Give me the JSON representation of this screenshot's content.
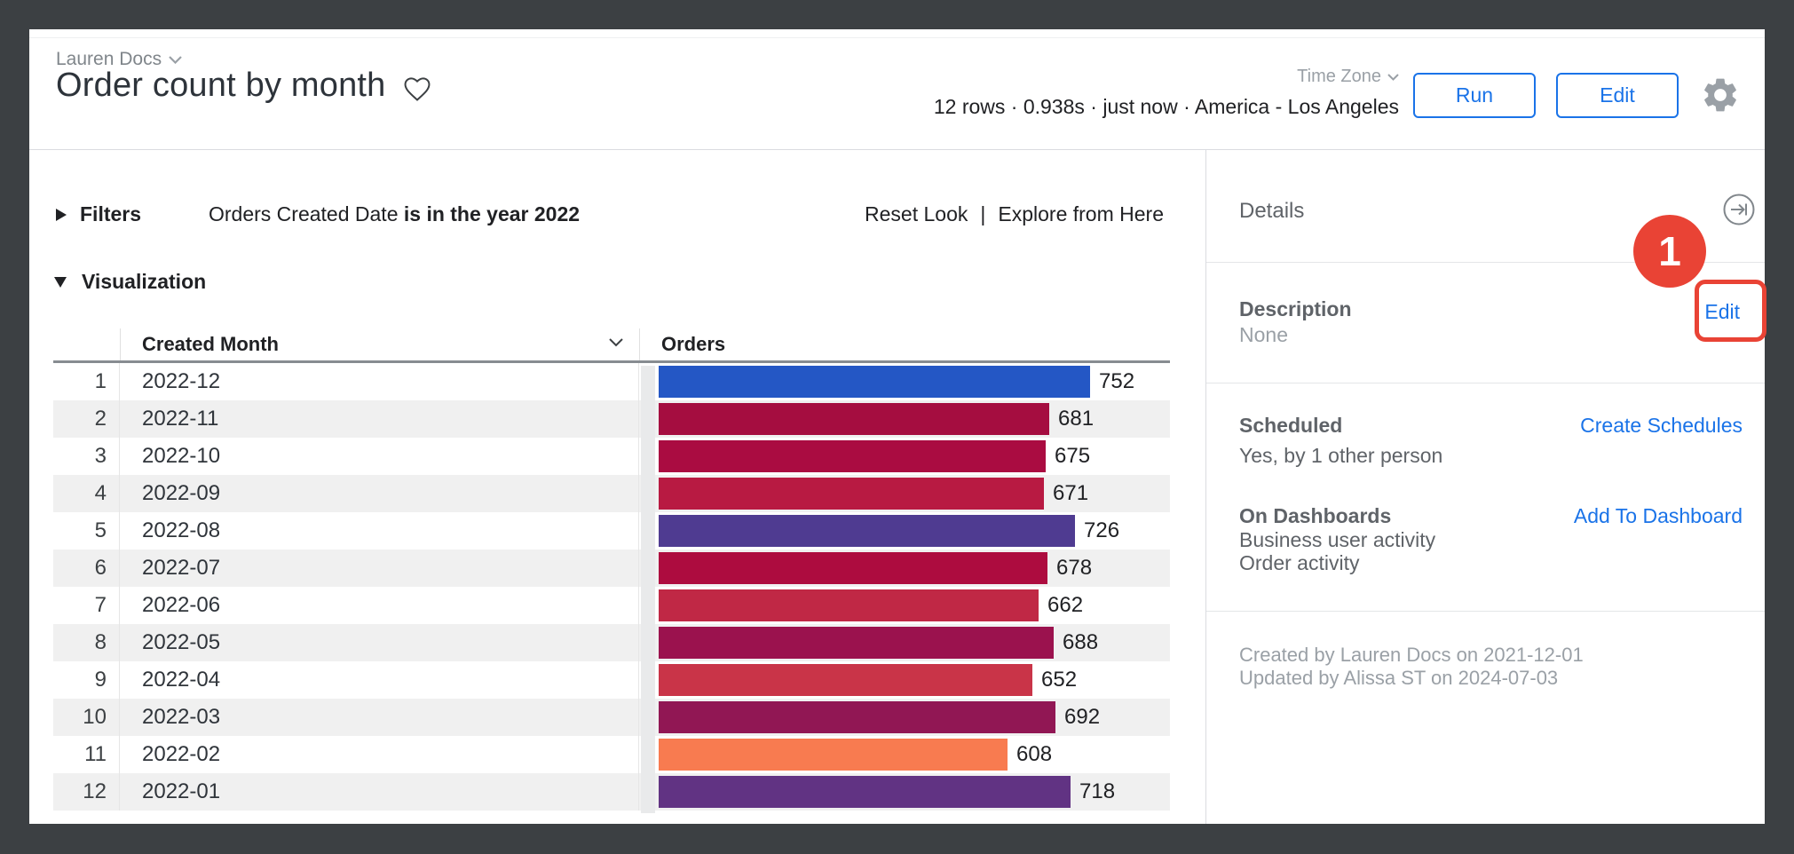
{
  "header": {
    "breadcrumb": "Lauren Docs",
    "title": "Order count by month",
    "timezone_label": "Time Zone",
    "meta": "12 rows · 0.938s · just now · America - Los Angeles",
    "run_label": "Run",
    "edit_label": "Edit"
  },
  "filters": {
    "section_label": "Filters",
    "field": "Orders Created Date ",
    "condition": "is in the year 2022",
    "reset_label": "Reset Look",
    "separator": "|",
    "explore_label": "Explore from Here"
  },
  "visualization": {
    "section_label": "Visualization"
  },
  "table": {
    "columns": {
      "month": "Created Month",
      "orders": "Orders"
    },
    "rows": [
      {
        "index": 1,
        "month": "2022-12",
        "orders": 752,
        "color": "#2457c5"
      },
      {
        "index": 2,
        "month": "2022-11",
        "orders": 681,
        "color": "#a50d40"
      },
      {
        "index": 3,
        "month": "2022-10",
        "orders": 675,
        "color": "#aa0c41"
      },
      {
        "index": 4,
        "month": "2022-09",
        "orders": 671,
        "color": "#b81a42"
      },
      {
        "index": 5,
        "month": "2022-08",
        "orders": 726,
        "color": "#4f3b91"
      },
      {
        "index": 6,
        "month": "2022-07",
        "orders": 678,
        "color": "#ad0c3f"
      },
      {
        "index": 7,
        "month": "2022-06",
        "orders": 662,
        "color": "#c02845"
      },
      {
        "index": 8,
        "month": "2022-05",
        "orders": 688,
        "color": "#9b124e"
      },
      {
        "index": 9,
        "month": "2022-04",
        "orders": 652,
        "color": "#c93448"
      },
      {
        "index": 10,
        "month": "2022-03",
        "orders": 692,
        "color": "#911754"
      },
      {
        "index": 11,
        "month": "2022-02",
        "orders": 608,
        "color": "#f87b50"
      },
      {
        "index": 12,
        "month": "2022-01",
        "orders": 718,
        "color": "#613383"
      }
    ]
  },
  "chart_data": {
    "type": "bar",
    "orientation": "horizontal",
    "categories": [
      "2022-12",
      "2022-11",
      "2022-10",
      "2022-09",
      "2022-08",
      "2022-07",
      "2022-06",
      "2022-05",
      "2022-04",
      "2022-03",
      "2022-02",
      "2022-01"
    ],
    "values": [
      752,
      681,
      675,
      671,
      726,
      678,
      662,
      688,
      652,
      692,
      608,
      718
    ],
    "bar_colors": [
      "#2457c5",
      "#a50d40",
      "#aa0c41",
      "#b81a42",
      "#4f3b91",
      "#ad0c3f",
      "#c02845",
      "#9b124e",
      "#c93448",
      "#911754",
      "#f87b50",
      "#613383"
    ],
    "title": "Order count by month",
    "xlabel": "Orders",
    "ylabel": "Created Month",
    "xlim": [
      0,
      752
    ],
    "grid": false,
    "legend": false
  },
  "details_panel": {
    "title": "Details",
    "description_label": "Description",
    "description_value": "None",
    "edit_label": "Edit",
    "scheduled_label": "Scheduled",
    "scheduled_value": "Yes, by 1 other person",
    "create_schedules_label": "Create Schedules",
    "dashboards_label": "On Dashboards",
    "dashboard_1": "Business user activity",
    "dashboard_2": "Order activity",
    "add_to_dashboard_label": "Add To Dashboard",
    "created_line": "Created by Lauren Docs on 2021-12-01",
    "updated_line": "Updated by Alissa ST on 2024-07-03"
  },
  "annotation": {
    "badge": "1",
    "color": "#e94335"
  },
  "colors": {
    "frame": "#3c4043",
    "accent_blue": "#1a73e8",
    "stripe": "#f0f0f0",
    "annotation_red": "#e94335"
  }
}
